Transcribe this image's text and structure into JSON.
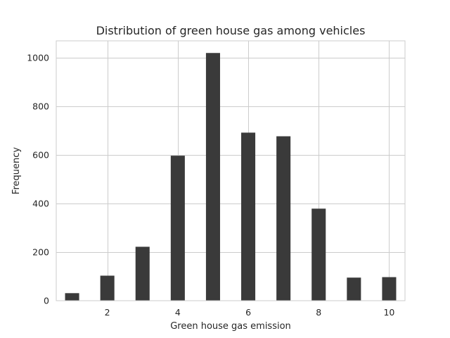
{
  "chart_data": {
    "type": "bar",
    "title": "Distribution of green house gas  among vehicles",
    "xlabel": "Green house gas emission",
    "ylabel": "Frequency",
    "xlim": [
      0.55,
      10.45
    ],
    "ylim": [
      0,
      1070
    ],
    "xticks": [
      2,
      4,
      6,
      8,
      10
    ],
    "yticks": [
      0,
      200,
      400,
      600,
      800,
      1000
    ],
    "x": [
      1,
      2,
      3,
      4,
      5,
      6,
      7,
      8,
      9,
      10
    ],
    "values": [
      31,
      103,
      222,
      597,
      1020,
      692,
      677,
      379,
      95,
      97
    ],
    "bar_width": 0.4,
    "grid": true,
    "bar_color": "#3a3a3a",
    "grid_color": "#cccccc",
    "background": "#ffffff"
  }
}
